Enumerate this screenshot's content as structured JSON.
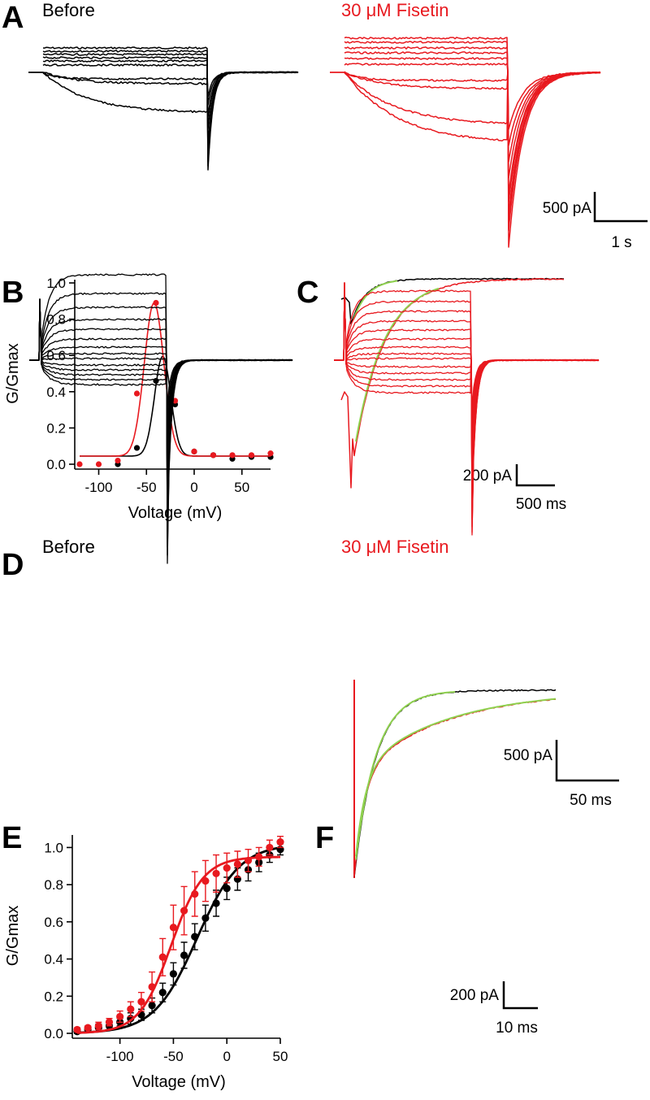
{
  "colors": {
    "before": "#000000",
    "fisetin": "#e8191f",
    "fit": "#8fd14f"
  },
  "panel_a": {
    "letter": "A",
    "label_before": "Before",
    "label_drug": "30 μM Fisetin",
    "scale_amp": "500 pA",
    "scale_time": "1 s"
  },
  "panel_c": {
    "letter": "C",
    "scale_amp": "200 pA",
    "scale_time": "500 ms"
  },
  "panel_d": {
    "letter": "D",
    "label_before": "Before",
    "label_drug": "30 μM Fisetin",
    "scale_amp": "500 pA",
    "scale_time": "50 ms"
  },
  "panel_f": {
    "letter": "F",
    "scale_amp": "200 pA",
    "scale_time": "10 ms"
  },
  "chart_data": [
    {
      "id": "B",
      "letter": "B",
      "type": "scatter",
      "xlabel": "Voltage (mV)",
      "ylabel": "G/Gmax",
      "xlim": [
        -120,
        80
      ],
      "ylim": [
        0,
        1.0
      ],
      "xticks": [
        -100,
        -50,
        0,
        50
      ],
      "yticks": [
        "0.0",
        "0.2",
        "0.4",
        "0.6",
        "0.8",
        "1.0"
      ],
      "series": [
        {
          "name": "Before",
          "color": "#000000",
          "x": [
            -80,
            -60,
            -40,
            -20,
            0,
            20,
            40,
            60,
            80
          ],
          "y": [
            0.0,
            0.09,
            0.46,
            0.33,
            0.07,
            0.05,
            0.03,
            0.04,
            0.04
          ],
          "fit": {
            "peak": 0.55,
            "v0": -33,
            "width": 12,
            "baseline": 0.045
          }
        },
        {
          "name": "30 μM Fisetin",
          "color": "#e8191f",
          "x": [
            -120,
            -100,
            -80,
            -60,
            -40,
            -20,
            0,
            20,
            40,
            60,
            80
          ],
          "y": [
            0.0,
            0.0,
            0.02,
            0.39,
            0.89,
            0.35,
            0.07,
            0.05,
            0.05,
            0.05,
            0.06
          ],
          "fit": {
            "peak": 0.845,
            "v0": -42,
            "width": 14.5,
            "baseline": 0.045
          }
        }
      ]
    },
    {
      "id": "E",
      "letter": "E",
      "type": "scatter",
      "xlabel": "Voltage (mV)",
      "ylabel": "G/Gmax",
      "xlim": [
        -140,
        50
      ],
      "ylim": [
        0,
        1.05
      ],
      "xticks": [
        -100,
        -50,
        0,
        50
      ],
      "yticks": [
        "0.0",
        "0.2",
        "0.4",
        "0.6",
        "0.8",
        "1.0"
      ],
      "series": [
        {
          "name": "Before",
          "color": "#000000",
          "x": [
            -140,
            -130,
            -120,
            -110,
            -100,
            -90,
            -80,
            -70,
            -60,
            -50,
            -40,
            -30,
            -20,
            -10,
            0,
            10,
            20,
            30,
            40,
            50
          ],
          "y": [
            0.01,
            0.02,
            0.03,
            0.04,
            0.06,
            0.08,
            0.1,
            0.15,
            0.22,
            0.32,
            0.42,
            0.52,
            0.62,
            0.7,
            0.78,
            0.83,
            0.88,
            0.92,
            0.96,
            0.99
          ],
          "err": [
            0.01,
            0.01,
            0.02,
            0.02,
            0.02,
            0.03,
            0.03,
            0.04,
            0.05,
            0.06,
            0.07,
            0.07,
            0.07,
            0.07,
            0.06,
            0.06,
            0.06,
            0.05,
            0.04,
            0.03
          ],
          "fit": {
            "vhalf": -28,
            "k": 20,
            "top": 1.02
          }
        },
        {
          "name": "30 μM Fisetin",
          "color": "#e8191f",
          "x": [
            -140,
            -130,
            -120,
            -110,
            -100,
            -90,
            -80,
            -70,
            -60,
            -50,
            -40,
            -30,
            -20,
            -10,
            0,
            10,
            20,
            30,
            40,
            50
          ],
          "y": [
            0.02,
            0.03,
            0.04,
            0.06,
            0.09,
            0.13,
            0.17,
            0.25,
            0.41,
            0.57,
            0.66,
            0.75,
            0.82,
            0.86,
            0.89,
            0.91,
            0.93,
            0.95,
            1.0,
            1.03
          ],
          "err": [
            0.01,
            0.01,
            0.02,
            0.02,
            0.03,
            0.04,
            0.05,
            0.08,
            0.1,
            0.12,
            0.13,
            0.12,
            0.11,
            0.1,
            0.08,
            0.07,
            0.06,
            0.05,
            0.04,
            0.03
          ],
          "fit": {
            "vhalf": -52,
            "k": 15,
            "top": 0.95
          }
        }
      ]
    }
  ]
}
